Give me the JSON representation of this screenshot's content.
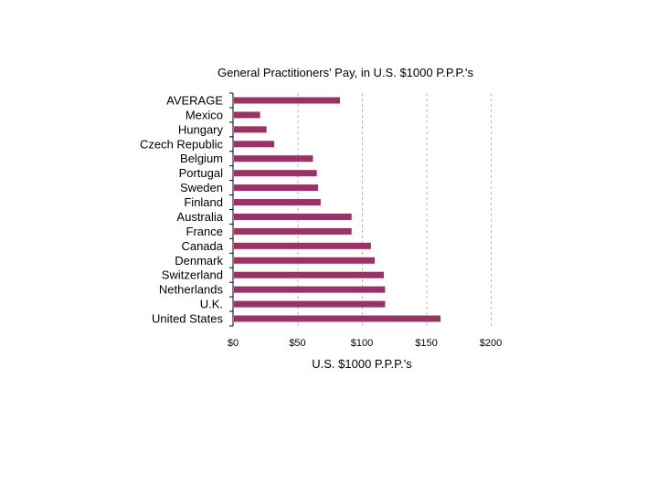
{
  "chart_data": {
    "type": "bar",
    "orientation": "horizontal",
    "title": "General Practitioners' Pay, in U.S. $1000 P.P.P.'s",
    "xlabel": "U.S. $1000 P.P.P.'s",
    "ylabel": "",
    "categories": [
      "AVERAGE",
      "Mexico",
      "Hungary",
      "Czech Republic",
      "Belgium",
      "Portugal",
      "Sweden",
      "Finland",
      "Australia",
      "France",
      "Canada",
      "Denmark",
      "Switzerland",
      "Netherlands",
      "U.K.",
      "United States"
    ],
    "values": [
      83,
      21,
      26,
      32,
      62,
      65,
      66,
      68,
      92,
      92,
      107,
      110,
      117,
      118,
      118,
      161
    ],
    "xlim": [
      0,
      200
    ],
    "xticks": [
      0,
      50,
      100,
      150,
      200
    ],
    "xtick_labels": [
      "$0",
      "$50",
      "$100",
      "$150",
      "$200"
    ],
    "grid": "vertical dashed",
    "legend": "none",
    "bar_color": "#993366"
  }
}
